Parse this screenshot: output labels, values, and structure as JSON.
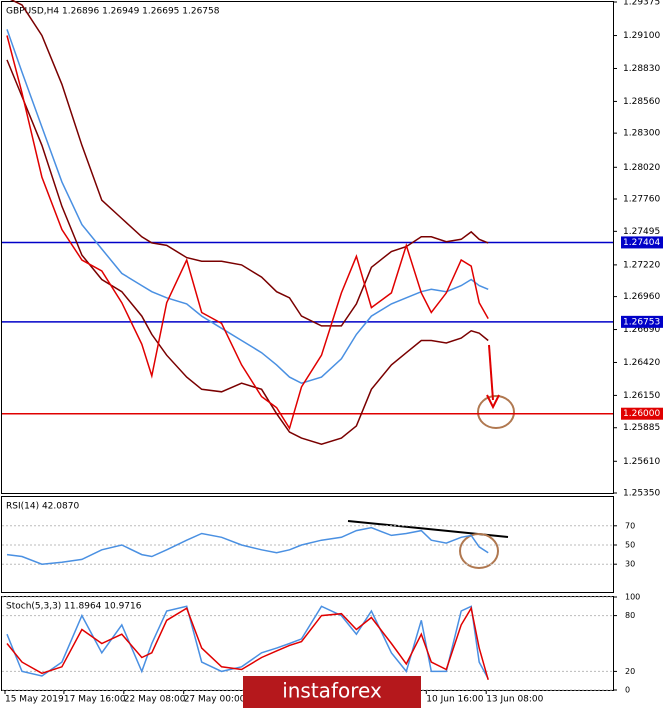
{
  "chart_data": [
    {
      "type": "line",
      "title": "GBPUSD,H4 1.26896 1.26949 1.26695 1.26758",
      "x": [
        1.25,
        5,
        10,
        15,
        20,
        25,
        30,
        35,
        37.5,
        41.25,
        46.25,
        50,
        55,
        60,
        65,
        68.75,
        72,
        75,
        80,
        85,
        88.75,
        92.5,
        97.5,
        101.25,
        105,
        107.5,
        111.25,
        115,
        117.5,
        119.5,
        121.75
      ],
      "xlim": [
        0,
        153
      ],
      "xticks": [
        {
          "value": 0.75,
          "label": "15 May 2019"
        },
        {
          "value": 15.5,
          "label": "17 May 16:00"
        },
        {
          "value": 30.5,
          "label": "22 May 08:00"
        },
        {
          "value": 45.5,
          "label": "27 May 00:00"
        },
        {
          "value": 106.25,
          "label": "10 Jun 16:00"
        },
        {
          "value": 121.25,
          "label": "13 Jun 08:00"
        }
      ],
      "ylim": [
        1.2535,
        1.29375
      ],
      "yticks": [
        {
          "value": 1.29375,
          "label": "1.29375"
        },
        {
          "value": 1.291,
          "label": "1.29100"
        },
        {
          "value": 1.2883,
          "label": "1.28830"
        },
        {
          "value": 1.2856,
          "label": "1.28560"
        },
        {
          "value": 1.283,
          "label": "1.28300"
        },
        {
          "value": 1.2802,
          "label": "1.28020"
        },
        {
          "value": 1.2776,
          "label": "1.27760"
        },
        {
          "value": 1.27495,
          "label": "1.27495"
        },
        {
          "value": 1.2722,
          "label": "1.27220"
        },
        {
          "value": 1.2696,
          "label": "1.26960"
        },
        {
          "value": 1.2669,
          "label": "1.26690"
        },
        {
          "value": 1.2642,
          "label": "1.26420"
        },
        {
          "value": 1.2615,
          "label": "1.26150"
        },
        {
          "value": 1.25885,
          "label": "1.25885"
        },
        {
          "value": 1.2561,
          "label": "1.25610"
        },
        {
          "value": 1.2535,
          "label": "1.25350"
        }
      ],
      "hlines": [
        {
          "value": 1.27404,
          "label": "1.27404",
          "color": "#0000c8"
        },
        {
          "value": 1.26753,
          "label": "1.26753",
          "color": "#0000c8"
        },
        {
          "value": 1.26,
          "label": "1.26000",
          "color": "#e00000"
        }
      ],
      "series": [
        {
          "color": "#7a0000",
          "values": [
            1.2941,
            1.2935,
            1.291,
            1.287,
            1.282,
            1.2775,
            1.276,
            1.2745,
            1.274,
            1.2738,
            1.2728,
            1.2725,
            1.2725,
            1.2722,
            1.2712,
            1.27,
            1.2695,
            1.268,
            1.2672,
            1.2672,
            1.269,
            1.272,
            1.2733,
            1.2737,
            1.2745,
            1.2745,
            1.2741,
            1.2743,
            1.2749,
            1.2743,
            1.274
          ]
        },
        {
          "color": "#7a0000",
          "values": [
            1.289,
            1.286,
            1.282,
            1.277,
            1.273,
            1.271,
            1.27,
            1.268,
            1.2665,
            1.2648,
            1.263,
            1.262,
            1.2618,
            1.2625,
            1.262,
            1.26,
            1.2585,
            1.258,
            1.2575,
            1.258,
            1.259,
            1.262,
            1.264,
            1.265,
            1.266,
            1.266,
            1.2658,
            1.2662,
            1.2668,
            1.2666,
            1.266
          ]
        },
        {
          "color": "#4a90e2",
          "values": [
            1.2915,
            1.288,
            1.2835,
            1.279,
            1.2755,
            1.2735,
            1.2715,
            1.2705,
            1.27,
            1.2695,
            1.269,
            1.268,
            1.267,
            1.266,
            1.265,
            1.264,
            1.263,
            1.2625,
            1.263,
            1.2645,
            1.2665,
            1.268,
            1.269,
            1.2695,
            1.27,
            1.2702,
            1.27,
            1.2705,
            1.271,
            1.2705,
            1.2702
          ]
        },
        {
          "color": "#e00000",
          "values": [
            1.291,
            1.2863,
            1.2794,
            1.2751,
            1.2726,
            1.2717,
            1.2691,
            1.2657,
            1.2631,
            1.2691,
            1.2726,
            1.2683,
            1.2674,
            1.264,
            1.2614,
            1.2605,
            1.2588,
            1.2622,
            1.2648,
            1.2699,
            1.2729,
            1.2687,
            1.2699,
            1.2738,
            1.2699,
            1.2683,
            1.2699,
            1.2726,
            1.2721,
            1.2691,
            1.2678
          ]
        }
      ],
      "watermark": "instaforex"
    },
    {
      "type": "line",
      "title": "RSI(14) 42.0870",
      "x": [
        1.25,
        5,
        10,
        15,
        20,
        25,
        30,
        35,
        37.5,
        41.25,
        46.25,
        50,
        55,
        60,
        65,
        68.75,
        72,
        75,
        80,
        85,
        88.75,
        92.5,
        97.5,
        101.25,
        105,
        107.5,
        111.25,
        115,
        117.5,
        119.5,
        121.75
      ],
      "xlim": [
        0,
        153
      ],
      "ylim": [
        0,
        100
      ],
      "yticks": [
        70,
        50,
        30
      ],
      "series": [
        {
          "color": "#4a90e2",
          "values": [
            40,
            38,
            30,
            32,
            35,
            45,
            50,
            40,
            38,
            45,
            55,
            62,
            58,
            50,
            45,
            42,
            45,
            50,
            55,
            58,
            65,
            68,
            60,
            62,
            65,
            55,
            52,
            58,
            60,
            48,
            42
          ]
        }
      ]
    },
    {
      "type": "line",
      "title": "Stoch(5,3,3) 11.8964 10.9716",
      "x": [
        1.25,
        5,
        10,
        15,
        20,
        25,
        30,
        35,
        37.5,
        41.25,
        46.25,
        50,
        55,
        60,
        65,
        68.75,
        72,
        75,
        80,
        85,
        88.75,
        92.5,
        97.5,
        101.25,
        105,
        107.5,
        111.25,
        115,
        117.5,
        119.5,
        121.75
      ],
      "xlim": [
        0,
        153
      ],
      "ylim": [
        0,
        100
      ],
      "yticks": [
        100,
        80,
        20,
        0
      ],
      "series": [
        {
          "color": "#4a90e2",
          "values": [
            60,
            20,
            15,
            30,
            80,
            40,
            70,
            20,
            50,
            85,
            90,
            30,
            20,
            25,
            40,
            45,
            50,
            55,
            90,
            80,
            60,
            85,
            40,
            20,
            75,
            20,
            20,
            85,
            90,
            30,
            12
          ]
        },
        {
          "color": "#e00000",
          "values": [
            50,
            30,
            18,
            25,
            65,
            50,
            60,
            35,
            40,
            75,
            88,
            45,
            25,
            22,
            35,
            42,
            48,
            52,
            80,
            82,
            65,
            78,
            50,
            28,
            60,
            30,
            22,
            70,
            88,
            45,
            11
          ]
        }
      ]
    }
  ]
}
